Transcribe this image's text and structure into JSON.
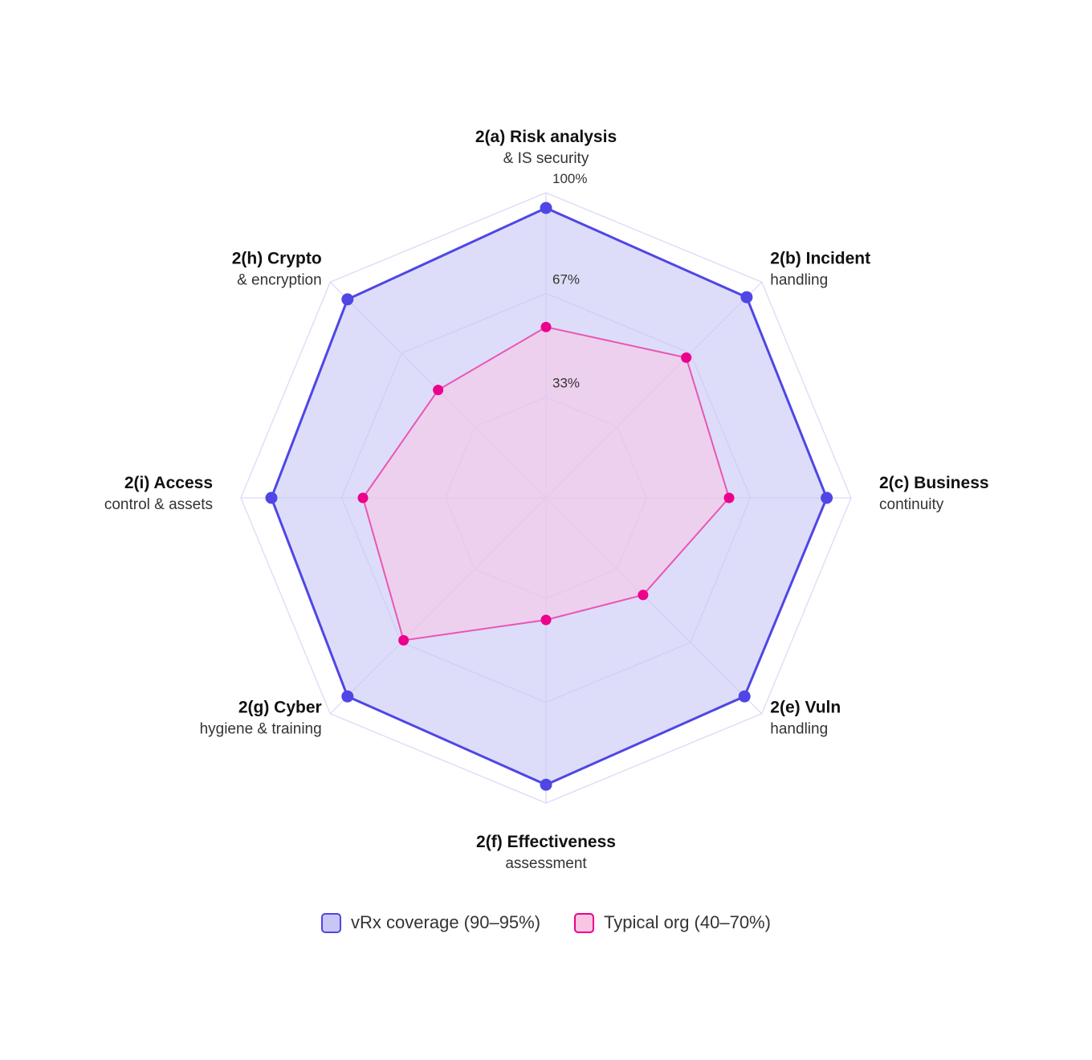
{
  "chart_data": {
    "type": "radar",
    "axes": [
      {
        "title": "2(a) Risk analysis",
        "subtitle": "& IS security"
      },
      {
        "title": "2(b) Incident",
        "subtitle": "handling"
      },
      {
        "title": "2(c) Business",
        "subtitle": "continuity"
      },
      {
        "title": "2(e) Vuln",
        "subtitle": "handling"
      },
      {
        "title": "2(f) Effectiveness",
        "subtitle": "assessment"
      },
      {
        "title": "2(g) Cyber",
        "subtitle": "hygiene & training"
      },
      {
        "title": "2(i) Access",
        "subtitle": "control & assets"
      },
      {
        "title": "2(h) Crypto",
        "subtitle": "& encryption"
      }
    ],
    "ticks": [
      {
        "value": 33,
        "label": "33%"
      },
      {
        "value": 67,
        "label": "67%"
      },
      {
        "value": 100,
        "label": "100%"
      }
    ],
    "range": [
      0,
      100
    ],
    "series": [
      {
        "name": "vRx coverage (90–95%)",
        "color": "#4f46e5",
        "fill": "#c7c6f5",
        "values": [
          95,
          93,
          92,
          92,
          94,
          92,
          90,
          92
        ]
      },
      {
        "name": "Typical org (40–70%)",
        "color": "#ec008c",
        "fill": "#f9c5e3",
        "values": [
          56,
          65,
          60,
          45,
          40,
          66,
          60,
          50
        ]
      }
    ],
    "legend": "bottom-center"
  }
}
